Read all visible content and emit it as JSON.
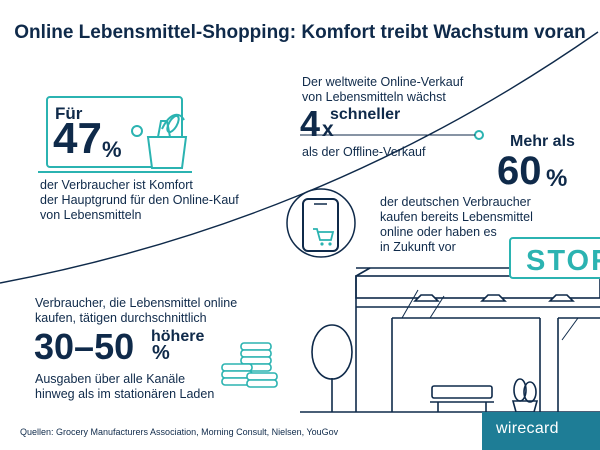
{
  "title": "Online Lebensmittel-Shopping: Komfort treibt Wachstum voran",
  "stat1": {
    "prefix": "Für",
    "number": "47",
    "unit": "%",
    "text": [
      "der Verbraucher ist Komfort",
      "der Hauptgrund für den Online-Kauf",
      "von Lebensmitteln"
    ]
  },
  "stat2": {
    "text_top": [
      "Der weltweite Online-Verkauf",
      "von Lebensmitteln wächst"
    ],
    "number": "4",
    "unit": "x",
    "word": "schneller",
    "text_bottom": "als der Offline-Verkauf"
  },
  "stat3": {
    "prefix": "Mehr als",
    "number": "60",
    "unit": "%",
    "text": [
      "der deutschen Verbraucher",
      "kaufen bereits Lebensmittel",
      "online oder haben es",
      "in Zukunft vor"
    ]
  },
  "stat4": {
    "text_top": [
      "Verbraucher, die Lebensmittel online",
      "kaufen, tätigen durchschnittlich"
    ],
    "number": "30–50",
    "unit": "%",
    "word": "höhere",
    "text_bottom": [
      "Ausgaben über alle Kanäle",
      "hinweg als im stationären Laden"
    ]
  },
  "store_sign": "STOR",
  "sources": "Quellen: Grocery Manufacturers Association, Morning Consult, Nielsen, YouGov",
  "brand": "wirecard",
  "colors": {
    "navy": "#0f2a4a",
    "teal": "#2bb3b1",
    "brand": "#1e7d96"
  },
  "icons": [
    "laptop-grocery-icon",
    "smartphone-cart-icon",
    "coin-stacks-icon",
    "store-illustration",
    "tree-icon",
    "bench-icon",
    "plant-pot-icon"
  ]
}
